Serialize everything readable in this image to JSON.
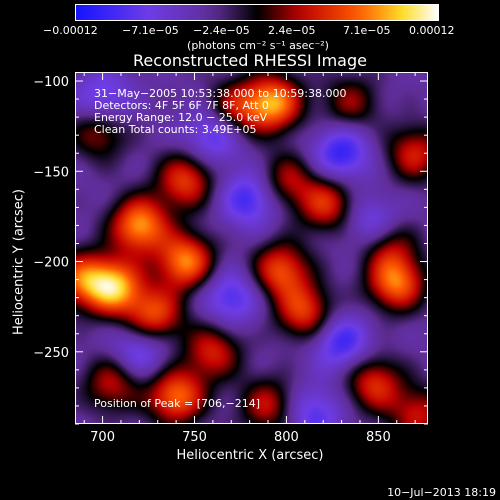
{
  "chart_data": {
    "type": "heatmap",
    "title": "Reconstructed RHESSI Image",
    "xlabel": "Heliocentric X (arcsec)",
    "ylabel": "Heliocentric Y (arcsec)",
    "xlim": [
      685,
      877
    ],
    "ylim": [
      -290,
      -95
    ],
    "xticks": [
      700,
      750,
      800,
      850
    ],
    "yticks": [
      -100,
      -150,
      -200,
      -250
    ],
    "xtick_labels": [
      "700",
      "750",
      "800",
      "850"
    ],
    "ytick_labels": [
      "−100",
      "−150",
      "−200",
      "−250"
    ],
    "colorbar": {
      "tick_labels": [
        "−0.00012",
        "−7.1e−05",
        "−2.4e−05",
        "2.4e−05",
        "7.1e−05",
        "0.00012"
      ],
      "tick_values": [
        -0.00012,
        -7.1e-05,
        -2.4e-05,
        2.4e-05,
        7.1e-05,
        0.00012
      ],
      "range": [
        -0.00012,
        0.00012
      ]
    },
    "units": "(photons cm⁻² s⁻¹ asec⁻²)",
    "annotations": [
      "31−May−2005 10:53:38.000 to 10:59:38.000",
      "Detectors: 4F 5F 6F 7F 8F, Att 0",
      "Energy Range: 12.0 − 25.0 keV",
      "Clean     Total counts: 3.49E+05"
    ],
    "peak_label": "Position of Peak = [706,−214]",
    "peak": [
      706,
      -214
    ],
    "sources": [
      {
        "x": 706,
        "y": -214,
        "v": 1.0
      },
      {
        "x": 720,
        "y": -180,
        "v": 0.95
      },
      {
        "x": 745,
        "y": -200,
        "v": 0.9
      },
      {
        "x": 728,
        "y": -230,
        "v": 0.75
      },
      {
        "x": 745,
        "y": -155,
        "v": 0.7
      },
      {
        "x": 793,
        "y": -112,
        "v": 0.95
      },
      {
        "x": 772,
        "y": -115,
        "v": 0.55
      },
      {
        "x": 698,
        "y": -128,
        "v": 0.5
      },
      {
        "x": 688,
        "y": -210,
        "v": 0.7
      },
      {
        "x": 740,
        "y": -275,
        "v": 0.85
      },
      {
        "x": 705,
        "y": -268,
        "v": 0.55
      },
      {
        "x": 760,
        "y": -250,
        "v": 0.6
      },
      {
        "x": 790,
        "y": -280,
        "v": 0.55
      },
      {
        "x": 797,
        "y": -205,
        "v": 0.75
      },
      {
        "x": 810,
        "y": -228,
        "v": 0.7
      },
      {
        "x": 822,
        "y": -168,
        "v": 0.65
      },
      {
        "x": 800,
        "y": -155,
        "v": 0.5
      },
      {
        "x": 848,
        "y": -268,
        "v": 0.65
      },
      {
        "x": 860,
        "y": -212,
        "v": 0.85
      },
      {
        "x": 855,
        "y": -190,
        "v": 0.55
      },
      {
        "x": 870,
        "y": -140,
        "v": 0.6
      },
      {
        "x": 835,
        "y": -112,
        "v": 0.45
      },
      {
        "x": 872,
        "y": -285,
        "v": 0.55
      },
      {
        "x": 760,
        "y": -130,
        "v": -0.5
      },
      {
        "x": 780,
        "y": -165,
        "v": -0.55
      },
      {
        "x": 830,
        "y": -140,
        "v": -0.6
      },
      {
        "x": 770,
        "y": -220,
        "v": -0.5
      },
      {
        "x": 830,
        "y": -245,
        "v": -0.55
      },
      {
        "x": 720,
        "y": -250,
        "v": -0.45
      },
      {
        "x": 848,
        "y": -180,
        "v": -0.5
      },
      {
        "x": 700,
        "y": -110,
        "v": -0.45
      },
      {
        "x": 815,
        "y": -285,
        "v": -0.45
      }
    ],
    "grid": false
  },
  "footer_timestamp": "10−Jul−2013 18:19"
}
